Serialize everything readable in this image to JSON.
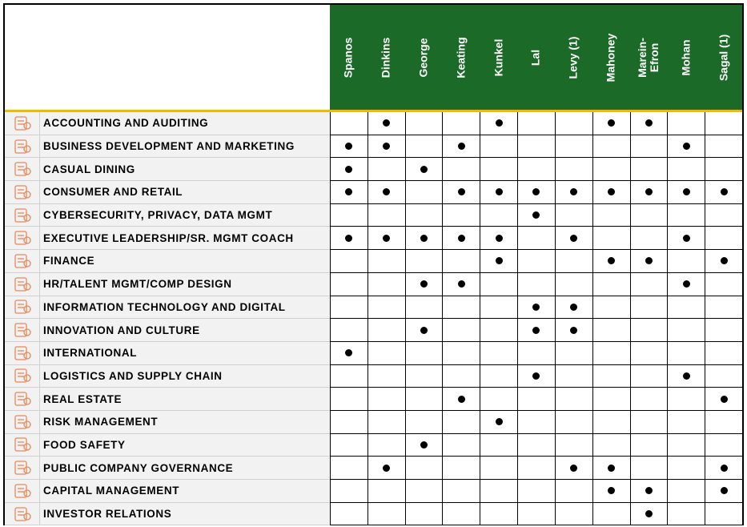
{
  "columns": [
    "Spanos",
    "Dinkins",
    "George",
    "Keating",
    "Kunkel",
    "Lal",
    "Levy (1)",
    "Mahoney",
    "Marein-\nEfron",
    "Mohan",
    "Sagal (1)"
  ],
  "colors": {
    "header_green": "#1c6a28",
    "divider_gold": "#f5b800",
    "icon_orange": "#e8875a",
    "label_bg": "#f2f2f2"
  },
  "marker": "●",
  "rows": [
    {
      "label": "ACCOUNTING AND AUDITING",
      "icon": "calculator-coin-icon",
      "marks": [
        0,
        1,
        0,
        0,
        1,
        0,
        0,
        1,
        1,
        0,
        0
      ]
    },
    {
      "label": "BUSINESS DEVELOPMENT AND MARKETING",
      "icon": "lightbulb-star-icon",
      "marks": [
        1,
        1,
        0,
        1,
        0,
        0,
        0,
        0,
        0,
        1,
        0
      ]
    },
    {
      "label": "CASUAL DINING",
      "icon": "dining-table-icon",
      "marks": [
        1,
        0,
        1,
        0,
        0,
        0,
        0,
        0,
        0,
        0,
        0
      ]
    },
    {
      "label": "CONSUMER AND RETAIL",
      "icon": "shopping-cart-icon",
      "marks": [
        1,
        1,
        0,
        1,
        1,
        1,
        1,
        1,
        1,
        1,
        1
      ]
    },
    {
      "label": "CYBERSECURITY, PRIVACY, DATA MGMT",
      "icon": "shield-lock-icon",
      "marks": [
        0,
        0,
        0,
        0,
        0,
        1,
        0,
        0,
        0,
        0,
        0
      ]
    },
    {
      "label": "EXECUTIVE LEADERSHIP/SR. MGMT COACH",
      "icon": "leader-podium-icon",
      "marks": [
        1,
        1,
        1,
        1,
        1,
        0,
        1,
        0,
        0,
        1,
        0
      ]
    },
    {
      "label": "FINANCE",
      "icon": "hand-money-icon",
      "marks": [
        0,
        0,
        0,
        0,
        1,
        0,
        0,
        1,
        1,
        0,
        1
      ]
    },
    {
      "label": "HR/TALENT MGMT/COMP DESIGN",
      "icon": "resume-document-icon",
      "marks": [
        0,
        0,
        1,
        1,
        0,
        0,
        0,
        0,
        0,
        1,
        0
      ]
    },
    {
      "label": "INFORMATION TECHNOLOGY AND DIGITAL",
      "icon": "cloud-network-icon",
      "marks": [
        0,
        0,
        0,
        0,
        0,
        1,
        1,
        0,
        0,
        0,
        0
      ]
    },
    {
      "label": "INNOVATION AND CULTURE",
      "icon": "lightbulb-gear-icon",
      "marks": [
        0,
        0,
        1,
        0,
        0,
        1,
        1,
        0,
        0,
        0,
        0
      ]
    },
    {
      "label": "INTERNATIONAL",
      "icon": "globe-icon",
      "marks": [
        1,
        0,
        0,
        0,
        0,
        0,
        0,
        0,
        0,
        0,
        0
      ]
    },
    {
      "label": "LOGISTICS AND SUPPLY CHAIN",
      "icon": "boxes-network-icon",
      "marks": [
        0,
        0,
        0,
        0,
        0,
        1,
        0,
        0,
        0,
        1,
        0
      ]
    },
    {
      "label": "REAL ESTATE",
      "icon": "house-icon",
      "marks": [
        0,
        0,
        0,
        1,
        0,
        0,
        0,
        0,
        0,
        0,
        1
      ]
    },
    {
      "label": "RISK MANAGEMENT",
      "icon": "warning-document-icon",
      "marks": [
        0,
        0,
        0,
        0,
        1,
        0,
        0,
        0,
        0,
        0,
        0
      ]
    },
    {
      "label": "FOOD SAFETY",
      "icon": "food-jar-icon",
      "marks": [
        0,
        0,
        1,
        0,
        0,
        0,
        0,
        0,
        0,
        0,
        0
      ]
    },
    {
      "label": "PUBLIC COMPANY GOVERNANCE",
      "icon": "building-icon",
      "marks": [
        0,
        1,
        0,
        0,
        0,
        0,
        1,
        1,
        0,
        0,
        1
      ]
    },
    {
      "label": "CAPITAL MANAGEMENT",
      "icon": "bar-chart-icon",
      "marks": [
        0,
        0,
        0,
        0,
        0,
        0,
        0,
        1,
        1,
        0,
        1
      ]
    },
    {
      "label": "INVESTOR RELATIONS",
      "icon": "handshake-icon",
      "marks": [
        0,
        0,
        0,
        0,
        0,
        0,
        0,
        0,
        1,
        0,
        0
      ]
    }
  ]
}
